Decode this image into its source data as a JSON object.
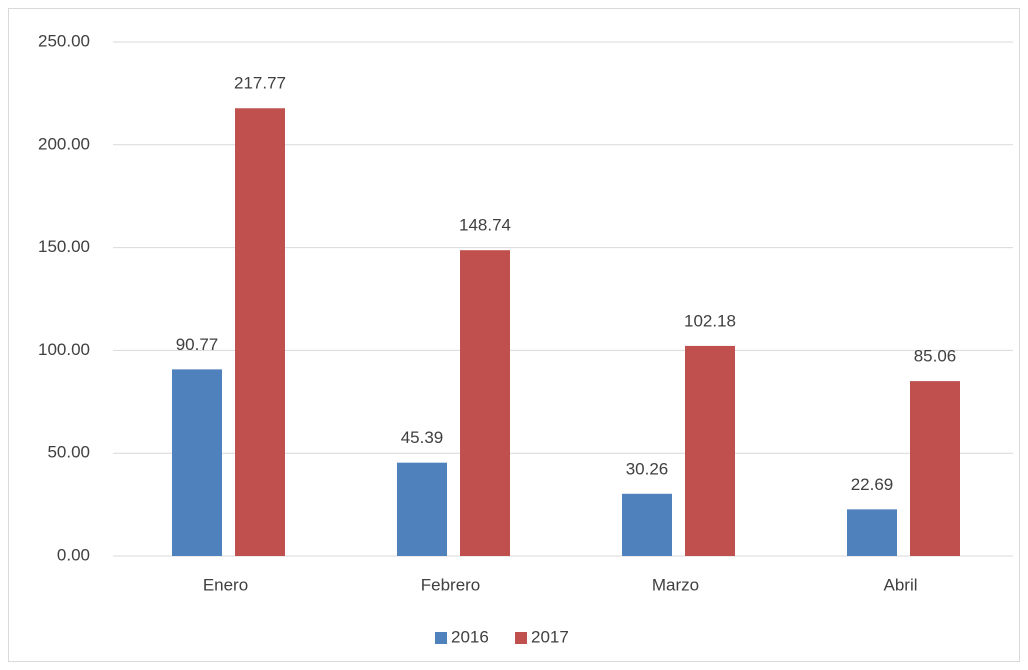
{
  "chart_data": {
    "type": "bar",
    "categories": [
      "Enero",
      "Febrero",
      "Marzo",
      "Abril"
    ],
    "series": [
      {
        "name": "2016",
        "color": "#4f81bd",
        "values": [
          90.77,
          45.39,
          30.26,
          22.69
        ]
      },
      {
        "name": "2017",
        "color": "#c0504d",
        "values": [
          217.77,
          148.74,
          102.18,
          85.06
        ]
      }
    ],
    "ylim": [
      0,
      250
    ],
    "yticks": [
      {
        "value": 0,
        "label": "0.00"
      },
      {
        "value": 50,
        "label": "50.00"
      },
      {
        "value": 100,
        "label": "100.00"
      },
      {
        "value": 150,
        "label": "150.00"
      },
      {
        "value": 200,
        "label": "200.00"
      },
      {
        "value": 250,
        "label": "250.00"
      }
    ],
    "grid": true,
    "legend": "bottom"
  }
}
